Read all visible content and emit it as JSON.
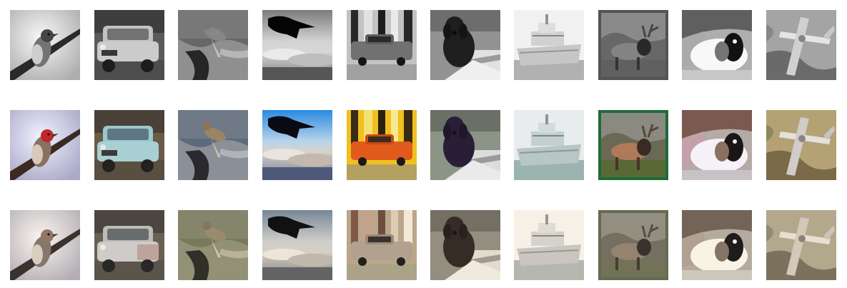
{
  "grid": {
    "rows": [
      {
        "variant": "grayscale"
      },
      {
        "variant": "color"
      },
      {
        "variant": "recolored"
      }
    ],
    "columns": [
      {
        "subject": "bird",
        "icon": "bird-icon"
      },
      {
        "subject": "car",
        "icon": "car-icon"
      },
      {
        "subject": "bird",
        "icon": "bird-icon"
      },
      {
        "subject": "bird",
        "icon": "bird-icon"
      },
      {
        "subject": "car",
        "icon": "car-icon"
      },
      {
        "subject": "dog",
        "icon": "dog-icon"
      },
      {
        "subject": "ship",
        "icon": "ship-icon"
      },
      {
        "subject": "deer",
        "icon": "deer-icon"
      },
      {
        "subject": "dog",
        "icon": "dog-icon"
      },
      {
        "subject": "airplane",
        "icon": "airplane-icon"
      }
    ]
  }
}
